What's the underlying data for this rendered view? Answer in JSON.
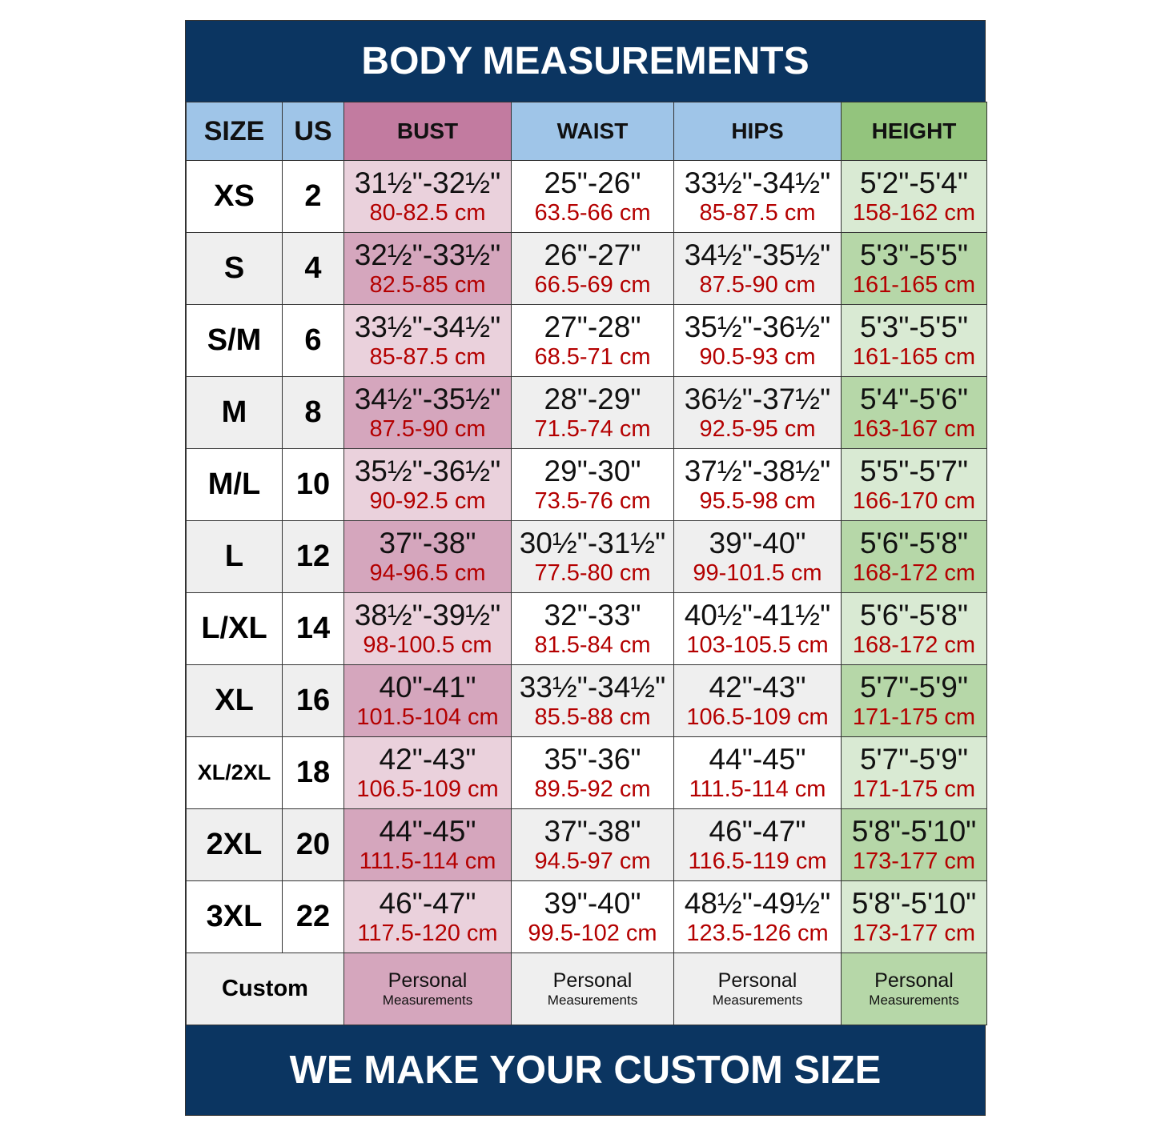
{
  "title": "BODY MEASUREMENTS",
  "footer": "WE MAKE YOUR CUSTOM SIZE",
  "colors": {
    "navy": "#0b3561",
    "header_blue": "#9fc5e8",
    "bust_header": "#c27ba0",
    "height_header": "#93c47d",
    "cm_text": "#b40000"
  },
  "headers": [
    "SIZE",
    "US",
    "BUST",
    "WAIST",
    "HIPS",
    "HEIGHT"
  ],
  "rows": [
    {
      "size": "XS",
      "us": "2",
      "bust": [
        "31½\"-32½\"",
        "80-82.5 cm"
      ],
      "waist": [
        "25\"-26\"",
        "63.5-66 cm"
      ],
      "hips": [
        "33½\"-34½\"",
        "85-87.5 cm"
      ],
      "height": [
        "5'2\"-5'4\"",
        "158-162 cm"
      ]
    },
    {
      "size": "S",
      "us": "4",
      "bust": [
        "32½\"-33½\"",
        "82.5-85 cm"
      ],
      "waist": [
        "26\"-27\"",
        "66.5-69 cm"
      ],
      "hips": [
        "34½\"-35½\"",
        "87.5-90 cm"
      ],
      "height": [
        "5'3\"-5'5\"",
        "161-165 cm"
      ]
    },
    {
      "size": "S/M",
      "us": "6",
      "bust": [
        "33½\"-34½\"",
        "85-87.5 cm"
      ],
      "waist": [
        "27\"-28\"",
        "68.5-71 cm"
      ],
      "hips": [
        "35½\"-36½\"",
        "90.5-93 cm"
      ],
      "height": [
        "5'3\"-5'5\"",
        "161-165 cm"
      ]
    },
    {
      "size": "M",
      "us": "8",
      "bust": [
        "34½\"-35½\"",
        "87.5-90 cm"
      ],
      "waist": [
        "28\"-29\"",
        "71.5-74 cm"
      ],
      "hips": [
        "36½\"-37½\"",
        "92.5-95 cm"
      ],
      "height": [
        "5'4\"-5'6\"",
        "163-167 cm"
      ]
    },
    {
      "size": "M/L",
      "us": "10",
      "bust": [
        "35½\"-36½\"",
        "90-92.5 cm"
      ],
      "waist": [
        "29\"-30\"",
        "73.5-76 cm"
      ],
      "hips": [
        "37½\"-38½\"",
        "95.5-98 cm"
      ],
      "height": [
        "5'5\"-5'7\"",
        "166-170 cm"
      ]
    },
    {
      "size": "L",
      "us": "12",
      "bust": [
        "37\"-38\"",
        "94-96.5 cm"
      ],
      "waist": [
        "30½\"-31½\"",
        "77.5-80 cm"
      ],
      "hips": [
        "39\"-40\"",
        "99-101.5 cm"
      ],
      "height": [
        "5'6\"-5'8\"",
        "168-172 cm"
      ]
    },
    {
      "size": "L/XL",
      "us": "14",
      "bust": [
        "38½\"-39½\"",
        "98-100.5 cm"
      ],
      "waist": [
        "32\"-33\"",
        "81.5-84 cm"
      ],
      "hips": [
        "40½\"-41½\"",
        "103-105.5 cm"
      ],
      "height": [
        "5'6\"-5'8\"",
        "168-172 cm"
      ]
    },
    {
      "size": "XL",
      "us": "16",
      "bust": [
        "40\"-41\"",
        "101.5-104 cm"
      ],
      "waist": [
        "33½\"-34½\"",
        "85.5-88 cm"
      ],
      "hips": [
        "42\"-43\"",
        "106.5-109 cm"
      ],
      "height": [
        "5'7\"-5'9\"",
        "171-175 cm"
      ]
    },
    {
      "size": "XL/2XL",
      "us": "18",
      "bust": [
        "42\"-43\"",
        "106.5-109 cm"
      ],
      "waist": [
        "35\"-36\"",
        "89.5-92 cm"
      ],
      "hips": [
        "44\"-45\"",
        "111.5-114 cm"
      ],
      "height": [
        "5'7\"-5'9\"",
        "171-175 cm"
      ]
    },
    {
      "size": "2XL",
      "us": "20",
      "bust": [
        "44\"-45\"",
        "111.5-114 cm"
      ],
      "waist": [
        "37\"-38\"",
        "94.5-97 cm"
      ],
      "hips": [
        "46\"-47\"",
        "116.5-119 cm"
      ],
      "height": [
        "5'8\"-5'10\"",
        "173-177 cm"
      ]
    },
    {
      "size": "3XL",
      "us": "22",
      "bust": [
        "46\"-47\"",
        "117.5-120 cm"
      ],
      "waist": [
        "39\"-40\"",
        "99.5-102 cm"
      ],
      "hips": [
        "48½\"-49½\"",
        "123.5-126 cm"
      ],
      "height": [
        "5'8\"-5'10\"",
        "173-177 cm"
      ]
    }
  ],
  "custom": {
    "label": "Custom",
    "line1": "Personal",
    "line2": "Measurements"
  }
}
